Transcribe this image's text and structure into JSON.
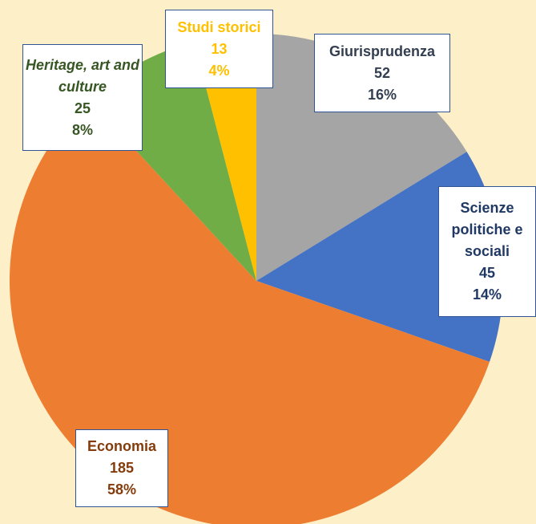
{
  "chart_data": {
    "type": "pie",
    "categories": [
      "Giurisprudenza",
      "Scienze politiche e sociali",
      "Economia",
      "Heritage, art and culture",
      "Studi storici"
    ],
    "values": [
      52,
      45,
      185,
      25,
      13
    ],
    "percent_labels": [
      "16%",
      "14%",
      "58%",
      "8%",
      "4%"
    ],
    "colors": [
      "#a5a5a5",
      "#4472c4",
      "#ed7d31",
      "#70ad47",
      "#ffc000"
    ],
    "label_colors": [
      "#333f50",
      "#1f3864",
      "#843c0c",
      "#375623",
      "#ffc000"
    ]
  }
}
